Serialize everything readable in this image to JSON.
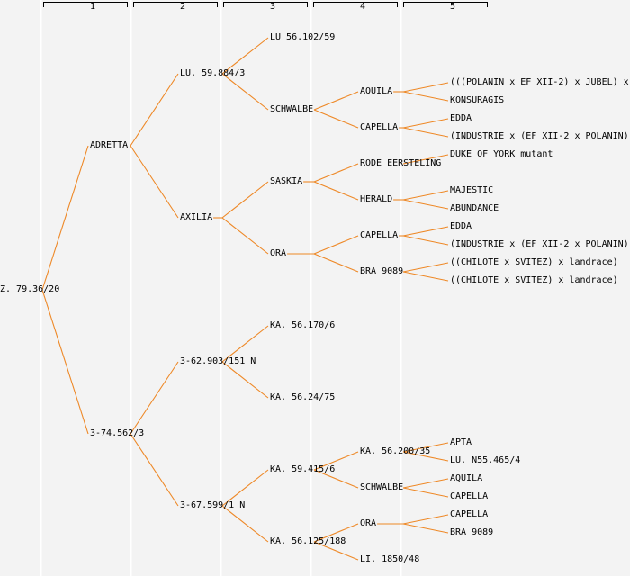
{
  "colors": {
    "background": "#f3f3f3",
    "tree_line": "#ee8826",
    "ruler_line": "#000000",
    "column_line": "#ffffff",
    "text": "#000000"
  },
  "ruler": {
    "labels": [
      "1",
      "2",
      "3",
      "4",
      "5"
    ]
  },
  "tree": {
    "name": "Z. 79.36/20",
    "children": [
      {
        "name": "ADRETTA",
        "children": [
          {
            "name": "LU. 59.884/3",
            "children": [
              {
                "name": "LU 56.102/59",
                "children": []
              },
              {
                "name": "SCHWALBE",
                "children": [
                  {
                    "name": "AQUILA",
                    "children": [
                      {
                        "name": "(((POLANIN x EF XII-2) x JUBEL) x",
                        "children": []
                      },
                      {
                        "name": "KONSURAGIS",
                        "children": []
                      }
                    ]
                  },
                  {
                    "name": "CAPELLA",
                    "children": [
                      {
                        "name": "EDDA",
                        "children": []
                      },
                      {
                        "name": "(INDUSTRIE x (EF XII-2 x POLANIN))",
                        "children": []
                      }
                    ]
                  }
                ]
              }
            ]
          },
          {
            "name": "AXILIA",
            "children": [
              {
                "name": "SASKIA",
                "children": [
                  {
                    "name": "RODE EERSTELING",
                    "children": [
                      {
                        "name": "DUKE OF YORK mutant",
                        "children": []
                      }
                    ]
                  },
                  {
                    "name": "HERALD",
                    "children": [
                      {
                        "name": "MAJESTIC",
                        "children": []
                      },
                      {
                        "name": "ABUNDANCE",
                        "children": []
                      }
                    ]
                  }
                ]
              },
              {
                "name": "ORA",
                "children": [
                  {
                    "name": "CAPELLA",
                    "children": [
                      {
                        "name": "EDDA",
                        "children": []
                      },
                      {
                        "name": "(INDUSTRIE x (EF XII-2 x POLANIN))",
                        "children": []
                      }
                    ]
                  },
                  {
                    "name": "BRA 9089",
                    "children": [
                      {
                        "name": "((CHILOTE x SVITEZ) x landrace)",
                        "children": []
                      },
                      {
                        "name": "((CHILOTE x SVITEZ) x landrace)",
                        "children": []
                      }
                    ]
                  }
                ]
              }
            ]
          }
        ]
      },
      {
        "name": "3-74.562/3",
        "children": [
          {
            "name": "3-62.903/151 N",
            "children": [
              {
                "name": "KA. 56.170/6",
                "children": []
              },
              {
                "name": "KA. 56.24/75",
                "children": []
              }
            ]
          },
          {
            "name": "3-67.599/1 N",
            "children": [
              {
                "name": "KA. 59.415/6",
                "children": [
                  {
                    "name": "KA. 56.200/35",
                    "children": [
                      {
                        "name": "APTA",
                        "children": []
                      },
                      {
                        "name": "LU. N55.465/4",
                        "children": []
                      }
                    ]
                  },
                  {
                    "name": "SCHWALBE",
                    "children": [
                      {
                        "name": "AQUILA",
                        "children": []
                      },
                      {
                        "name": "CAPELLA",
                        "children": []
                      }
                    ]
                  }
                ]
              },
              {
                "name": "KA. 56.125/188",
                "children": [
                  {
                    "name": "ORA",
                    "children": [
                      {
                        "name": "CAPELLA",
                        "children": []
                      },
                      {
                        "name": "BRA 9089",
                        "children": []
                      }
                    ]
                  },
                  {
                    "name": "LI. 1850/48",
                    "children": []
                  }
                ]
              }
            ]
          }
        ]
      }
    ]
  }
}
